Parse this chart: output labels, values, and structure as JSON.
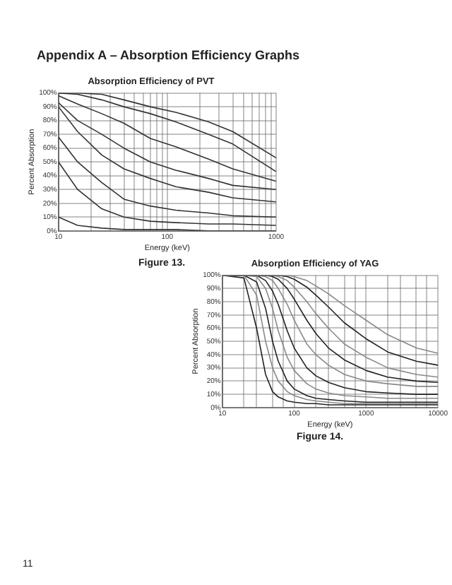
{
  "chart_data": [
    {
      "type": "line",
      "title": "Absorption Efficiency of PVT",
      "xlabel": "Energy (keV)",
      "ylabel": "Percent Absorption",
      "annotations": [
        "Appendix A – Absorption Efficiency Graphs",
        "Figure 13."
      ],
      "x": [
        10,
        15,
        25,
        40,
        70,
        120,
        240,
        400,
        1000
      ],
      "series": [
        {
          "color": "#333333",
          "values": [
            100,
            100,
            99,
            95,
            90,
            86,
            79,
            72,
            53
          ]
        },
        {
          "color": "#333333",
          "values": [
            100,
            99,
            95,
            90,
            85,
            79,
            70,
            63,
            43
          ]
        },
        {
          "color": "#333333",
          "values": [
            98,
            92,
            85,
            78,
            67,
            61,
            52,
            45,
            36
          ]
        },
        {
          "color": "#333333",
          "values": [
            93,
            80,
            70,
            60,
            50,
            44,
            38,
            33,
            30
          ]
        },
        {
          "color": "#333333",
          "values": [
            90,
            72,
            55,
            45,
            38,
            32,
            28,
            24,
            21
          ]
        },
        {
          "color": "#333333",
          "values": [
            68,
            50,
            35,
            23,
            18,
            15,
            13,
            11,
            10
          ]
        },
        {
          "color": "#333333",
          "values": [
            50,
            30,
            16,
            10,
            7,
            6,
            5,
            5,
            4
          ]
        },
        {
          "color": "#333333",
          "values": [
            10,
            4,
            2,
            1,
            1,
            1,
            0,
            0,
            0
          ]
        }
      ],
      "log": "x",
      "xlim": [
        10,
        1000
      ],
      "xticks": [
        10,
        {
          "value": 20,
          "label": null
        },
        {
          "value": 30,
          "label": null
        },
        {
          "value": 40,
          "label": null
        },
        {
          "value": 50,
          "label": null
        },
        {
          "value": 60,
          "label": null
        },
        {
          "value": 70,
          "label": null
        },
        {
          "value": 80,
          "label": null
        },
        {
          "value": 90,
          "label": null
        },
        100,
        {
          "value": 200,
          "label": null
        },
        {
          "value": 300,
          "label": null
        },
        {
          "value": 400,
          "label": null
        },
        {
          "value": 500,
          "label": null
        },
        {
          "value": 600,
          "label": null
        },
        {
          "value": 700,
          "label": null
        },
        {
          "value": 800,
          "label": null
        },
        {
          "value": 900,
          "label": null
        },
        1000
      ],
      "ylim": [
        0,
        100
      ],
      "yticks": [
        {
          "value": 0,
          "label": "0%"
        },
        {
          "value": 10,
          "label": "10%"
        },
        {
          "value": 20,
          "label": "20%"
        },
        {
          "value": 30,
          "label": "30%"
        },
        {
          "value": 40,
          "label": "40%"
        },
        {
          "value": 50,
          "label": "50%"
        },
        {
          "value": 60,
          "label": "60%"
        },
        {
          "value": 70,
          "label": "70%"
        },
        {
          "value": 80,
          "label": "80%"
        },
        {
          "value": 90,
          "label": "90%"
        },
        {
          "value": 100,
          "label": "100%"
        }
      ],
      "grid": true,
      "legend": false,
      "marker": "none",
      "line_style": "solid"
    },
    {
      "type": "line",
      "title": "Absorption Efficiency of YAG",
      "xlabel": "Energy (keV)",
      "ylabel": "Percent Absorption",
      "annotations": [
        "Figure 14.",
        "11"
      ],
      "x": [
        10,
        20,
        30,
        40,
        50,
        60,
        80,
        100,
        150,
        200,
        300,
        500,
        1000,
        2000,
        5000,
        10000
      ],
      "series": [
        {
          "color": "#888888",
          "values": [
            100,
            100,
            100,
            100,
            100,
            100,
            100,
            99,
            96,
            92,
            86,
            77,
            66,
            55,
            45,
            41
          ]
        },
        {
          "color": "#222222",
          "values": [
            100,
            100,
            100,
            100,
            100,
            100,
            99,
            97,
            91,
            85,
            76,
            64,
            52,
            42,
            35,
            32
          ]
        },
        {
          "color": "#888888",
          "values": [
            100,
            100,
            100,
            100,
            100,
            99,
            96,
            91,
            80,
            71,
            60,
            48,
            38,
            30,
            25,
            23
          ]
        },
        {
          "color": "#222222",
          "values": [
            100,
            100,
            100,
            100,
            99,
            97,
            90,
            82,
            66,
            56,
            45,
            36,
            28,
            23,
            20,
            19
          ]
        },
        {
          "color": "#888888",
          "values": [
            100,
            100,
            100,
            99,
            96,
            90,
            78,
            66,
            48,
            40,
            32,
            25,
            20,
            18,
            16,
            16
          ]
        },
        {
          "color": "#222222",
          "values": [
            100,
            100,
            100,
            96,
            88,
            78,
            58,
            45,
            30,
            24,
            19,
            15,
            12,
            11,
            10,
            10
          ]
        },
        {
          "color": "#888888",
          "values": [
            100,
            100,
            99,
            90,
            75,
            58,
            38,
            28,
            18,
            14,
            11,
            9,
            8,
            7,
            7,
            7
          ]
        },
        {
          "color": "#222222",
          "values": [
            100,
            100,
            95,
            75,
            50,
            35,
            20,
            14,
            9,
            7,
            6,
            5,
            4,
            4,
            4,
            4
          ]
        },
        {
          "color": "#888888",
          "values": [
            100,
            100,
            85,
            50,
            30,
            20,
            12,
            9,
            6,
            5,
            4,
            3,
            3,
            3,
            3,
            3
          ]
        },
        {
          "color": "#222222",
          "values": [
            100,
            98,
            60,
            25,
            12,
            8,
            5,
            4,
            3,
            3,
            2,
            2,
            2,
            2,
            2,
            2
          ]
        }
      ],
      "log": "x",
      "xlim": [
        10,
        10000
      ],
      "xticks": [
        10,
        {
          "value": 20,
          "label": null
        },
        {
          "value": 30,
          "label": null
        },
        {
          "value": 50,
          "label": null
        },
        {
          "value": 70,
          "label": null
        },
        100,
        {
          "value": 200,
          "label": null
        },
        {
          "value": 300,
          "label": null
        },
        {
          "value": 500,
          "label": null
        },
        {
          "value": 700,
          "label": null
        },
        1000,
        {
          "value": 2000,
          "label": null
        },
        {
          "value": 3000,
          "label": null
        },
        {
          "value": 5000,
          "label": null
        },
        {
          "value": 7000,
          "label": null
        },
        10000
      ],
      "ylim": [
        0,
        100
      ],
      "yticks": [
        {
          "value": 0,
          "label": "0%"
        },
        {
          "value": 10,
          "label": "10%"
        },
        {
          "value": 20,
          "label": "20%"
        },
        {
          "value": 30,
          "label": "30%"
        },
        {
          "value": 40,
          "label": "40%"
        },
        {
          "value": 50,
          "label": "50%"
        },
        {
          "value": 60,
          "label": "60%"
        },
        {
          "value": 70,
          "label": "70%"
        },
        {
          "value": 80,
          "label": "80%"
        },
        {
          "value": 90,
          "label": "90%"
        },
        {
          "value": 100,
          "label": "100%"
        }
      ],
      "grid": true,
      "legend": false,
      "marker": "none",
      "line_style": "solid"
    }
  ]
}
